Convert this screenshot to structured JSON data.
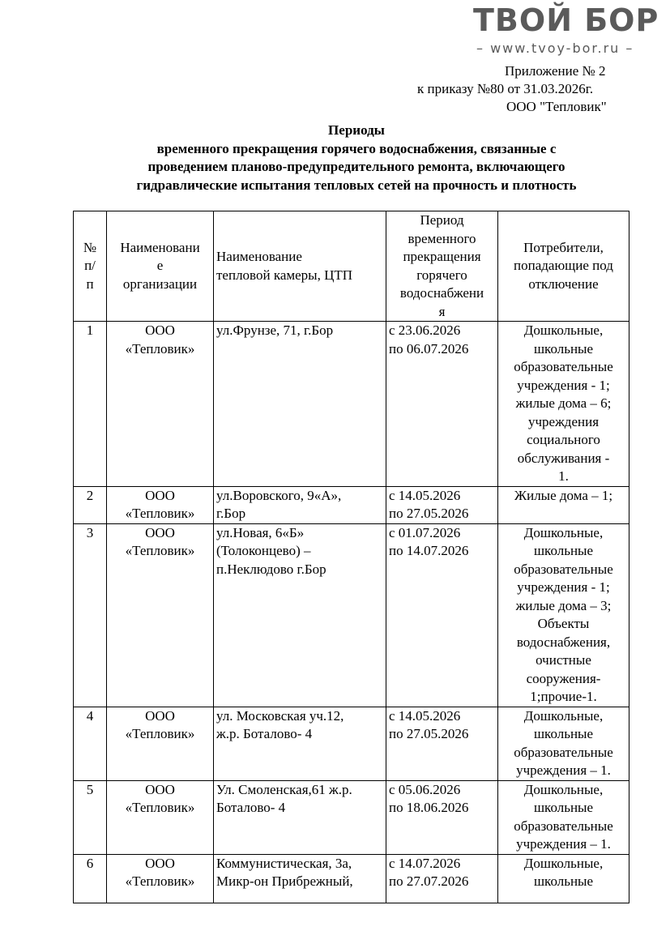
{
  "watermark": {
    "logo": "ТВОЙ БОР",
    "url": "– www.tvoy-bor.ru –"
  },
  "header": {
    "line1": "Приложение № 2",
    "line2": "к приказу №80 от 31.03.2026г.",
    "line3": "ООО \"Тепловик\""
  },
  "title": "Периоды\nвременного прекращения горячего водоснабжения, связанные с\nпроведением планово-предупредительного ремонта, включающего\nгидравлические испытания тепловых сетей на прочность и плотность",
  "table": {
    "columns": [
      "№\nп/\nп",
      "Наименовани\nе\nорганизации",
      "Наименование\nтепловой камеры, ЦТП",
      "Период\nвременного\nпрекращения\nгорячего\nводоснабжени\nя",
      "Потребители,\nпопадающие под\nотключение"
    ],
    "rows": [
      {
        "num": "1",
        "org": "ООО\n«Тепловик»",
        "place": "ул.Фрунзе, 71, г.Бор",
        "period": "с 23.06.2026\nпо 06.07.2026",
        "consumers": "Дошкольные,\nшкольные\nобразовательные\nучреждения - 1;\nжилые дома – 6;\nучреждения\nсоциального\nобслуживания -\n1."
      },
      {
        "num": "2",
        "org": "ООО\n«Тепловик»",
        "place": "ул.Воровского, 9«А»,\nг.Бор",
        "period": "с 14.05.2026\nпо 27.05.2026",
        "consumers": "Жилые дома – 1;"
      },
      {
        "num": "3",
        "org": "ООО\n«Тепловик»",
        "place": "ул.Новая, 6«Б»\n(Толоконцево) –\nп.Неклюдово г.Бор",
        "period": "с 01.07.2026\nпо 14.07.2026",
        "consumers": "Дошкольные,\nшкольные\nобразовательные\nучреждения - 1;\nжилые дома – 3;\nОбъекты\nводоснабжения,\nочистные\nсооружения-\n1;прочие-1."
      },
      {
        "num": "4",
        "org": "ООО\n«Тепловик»",
        "place": "ул. Московская уч.12,\nж.р. Боталово- 4",
        "period": "с 14.05.2026\nпо 27.05.2026",
        "consumers": "Дошкольные,\nшкольные\nобразовательные\nучреждения – 1."
      },
      {
        "num": "5",
        "org": "ООО\n«Тепловик»",
        "place": "Ул. Смоленская,61 ж.р.\nБоталово- 4",
        "period": "с 05.06.2026\nпо 18.06.2026",
        "consumers": "Дошкольные,\nшкольные\nобразовательные\nучреждения – 1."
      },
      {
        "num": "6",
        "org": "ООО\n«Тепловик»",
        "place": "Коммунистическая, 3а,\nМикр-он Прибрежный,",
        "period": "с 14.07.2026\nпо 27.07.2026",
        "consumers": "Дошкольные,\nшкольные"
      }
    ]
  }
}
